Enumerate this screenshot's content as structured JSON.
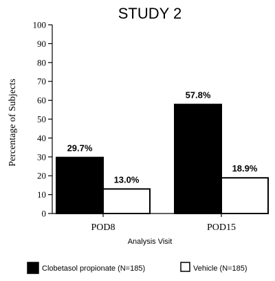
{
  "chart_data": {
    "type": "bar",
    "title": "STUDY 2",
    "ylabel": "Percentage of Subjects",
    "xlabel": "Analysis Visit",
    "ylim": [
      0,
      100
    ],
    "yticks": [
      0,
      10,
      20,
      30,
      40,
      50,
      60,
      70,
      80,
      90,
      100
    ],
    "categories": [
      "POD8",
      "POD15"
    ],
    "series": [
      {
        "name": "Clobetasol propionate (N=185)",
        "values": [
          29.7,
          57.8
        ],
        "labels": [
          "29.7%",
          "57.8%"
        ],
        "color": "#000000"
      },
      {
        "name": "Vehicle (N=185)",
        "values": [
          13.0,
          18.9
        ],
        "labels": [
          "13.0%",
          "18.9%"
        ],
        "color": "#ffffff"
      }
    ],
    "legend_position": "bottom",
    "grid": false
  }
}
